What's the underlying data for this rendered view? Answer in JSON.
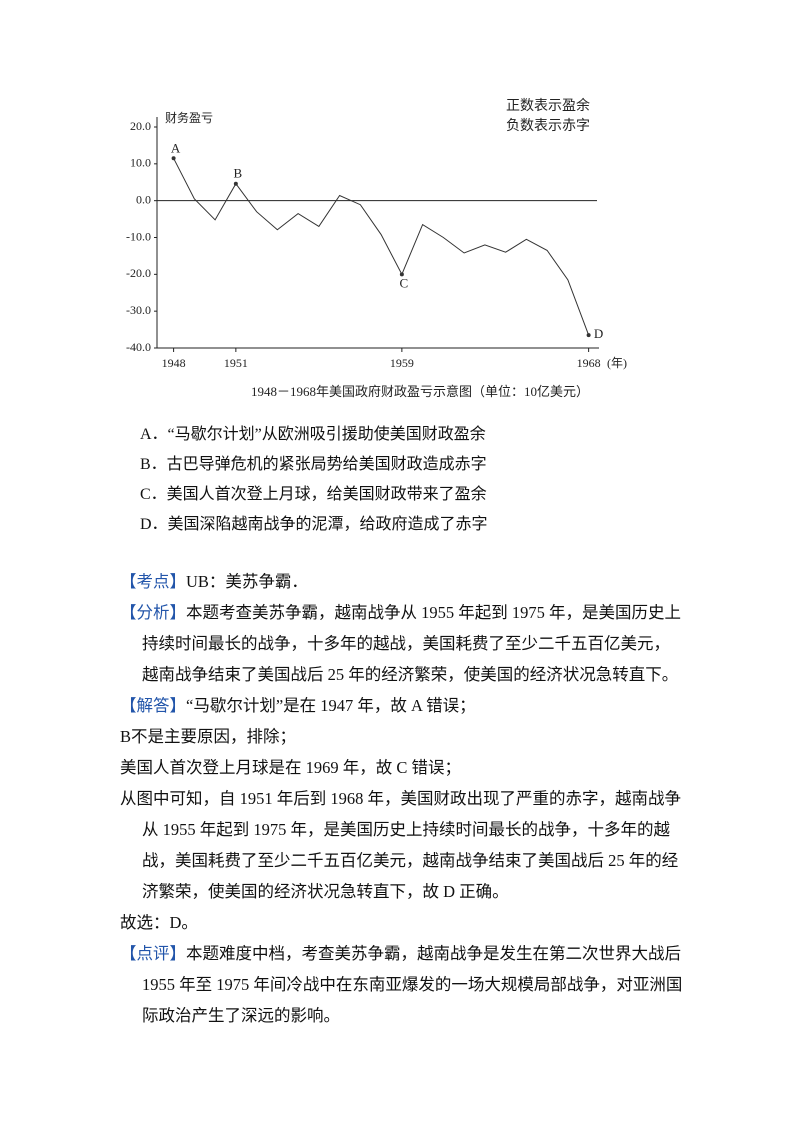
{
  "chart_data": {
    "type": "line",
    "y_label": "财务盈亏",
    "annotation_lines": [
      "正数表示盈余",
      "负数表示赤字"
    ],
    "x_unit": "(年)",
    "caption": "1948－1968年美国政府财政盈亏示意图（单位：10亿美元）",
    "x": [
      1948,
      1949,
      1950,
      1951,
      1952,
      1953,
      1954,
      1955,
      1956,
      1957,
      1958,
      1959,
      1960,
      1961,
      1962,
      1963,
      1964,
      1965,
      1966,
      1967,
      1968
    ],
    "values": [
      11.5,
      0.5,
      -5.2,
      4.6,
      -3,
      -7.9,
      -3.5,
      -7,
      1.4,
      -1.1,
      -9.2,
      -20,
      -6.5,
      -10,
      -14.2,
      -12,
      -14,
      -10.5,
      -13.5,
      -21.5,
      -36.5
    ],
    "point_labels": [
      "A",
      null,
      null,
      "B",
      null,
      null,
      null,
      null,
      null,
      null,
      null,
      "C",
      null,
      null,
      null,
      null,
      null,
      null,
      null,
      null,
      "D"
    ],
    "color": "#333333",
    "xlim": [
      1947.2,
      1968.5
    ],
    "xticks": [
      1948,
      1951,
      1959,
      1968
    ],
    "ylim": [
      -40,
      20
    ],
    "yticks": [
      {
        "value": -40,
        "label": "-40.0"
      },
      {
        "value": -30,
        "label": "-30.0"
      },
      {
        "value": -20,
        "label": "-20.0"
      },
      {
        "value": -10,
        "label": "-10.0"
      },
      {
        "value": 0,
        "label": "0.0"
      },
      {
        "value": 10,
        "label": "10.0"
      },
      {
        "value": 20,
        "label": "20.0"
      }
    ],
    "zero_line": true
  },
  "options": [
    "A．“马歇尔计划”从欧洲吸引援助使美国财政盈余",
    "B．古巴导弹危机的紧张局势给美国财政造成赤字",
    "C．美国人首次登上月球，给美国财政带来了盈余",
    "D．美国深陷越南战争的泥潭，给政府造成了赤字"
  ],
  "analysis": [
    {
      "tag": "【考点】",
      "text": "UB：美苏争霸．"
    },
    {
      "tag": "【分析】",
      "text": "本题考查美苏争霸，越南战争从 1955 年起到 1975 年，是美国历史上持续时间最长的战争，十多年的越战，美国耗费了至少二千五百亿美元，越南战争结束了美国战后 25 年的经济繁荣，使美国的经济状况急转直下。"
    },
    {
      "tag": "【解答】",
      "text": "“马歇尔计划”是在 1947 年，故 A 错误；"
    },
    {
      "text": "B不是主要原因，排除；"
    },
    {
      "text": "美国人首次登上月球是在 1969 年，故 C 错误；"
    },
    {
      "text": "从图中可知，自 1951 年后到 1968 年，美国财政出现了严重的赤字，越南战争从 1955 年起到 1975 年，是美国历史上持续时间最长的战争，十多年的越战，美国耗费了至少二千五百亿美元，越南战争结束了美国战后 25 年的经济繁荣，使美国的经济状况急转直下，故 D 正确。"
    },
    {
      "text": "故选：D。"
    },
    {
      "tag": "【点评】",
      "text": "本题难度中档，考查美苏争霸，越南战争是发生在第二次世界大战后 1955 年至 1975 年间冷战中在东南亚爆发的一场大规模局部战争，对亚洲国际政治产生了深远的影响。"
    }
  ]
}
